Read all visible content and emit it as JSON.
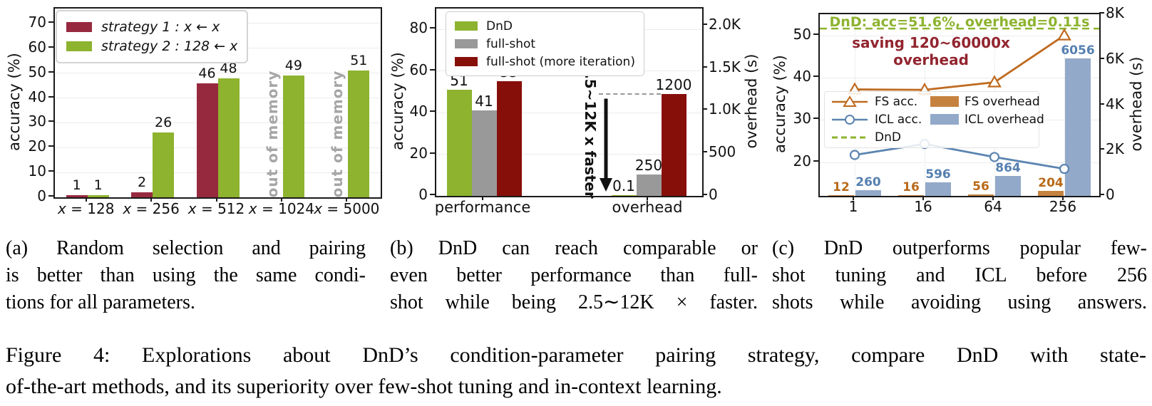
{
  "figure_caption": {
    "lines": [
      "Figure 4: Explorations about DnD’s condition-parameter pairing strategy, compare DnD with state-",
      "of-the-art methods, and its superiority over few-shot tuning and in-context learning."
    ],
    "justify_last": false
  },
  "subcaptions": {
    "a": {
      "lines": [
        "(a) Random selection and pairing",
        "is better than using the same condi-",
        "tions for all parameters."
      ],
      "justify_last": false
    },
    "b": {
      "lines": [
        "(b) DnD can reach comparable or",
        "even better performance than full-",
        "shot while being 2.5∼12K × faster."
      ],
      "justify_last": true
    },
    "c": {
      "lines": [
        "(c) DnD outperforms popular few-",
        "shot tuning and ICL before 256",
        "shots while avoiding using answers."
      ],
      "justify_last": true
    }
  },
  "chart_data": [
    {
      "panel": "a",
      "type": "bar",
      "title": "",
      "ylabel": "accuracy (%)",
      "ylim": [
        0,
        76
      ],
      "yticks": [
        0,
        10,
        20,
        30,
        40,
        50,
        60,
        70
      ],
      "categories": [
        "x = 128",
        "x = 256",
        "x = 512",
        "x = 1024",
        "x = 5000"
      ],
      "series": [
        {
          "name": "strategy 1 : x ← x",
          "color": "#97293f",
          "values": [
            1,
            2,
            46,
            null,
            null
          ]
        },
        {
          "name": "strategy 2 : 128 ← x",
          "color": "#8db32f",
          "values": [
            1,
            26,
            48,
            49,
            51
          ]
        }
      ],
      "oom_text": "out of memory",
      "grid": "horizontal",
      "legend_position": "upper left"
    },
    {
      "panel": "b",
      "type": "grouped-bar-dual-axis",
      "ylabel_left": "accuracy (%)",
      "ylabel_right": "overhead (s)",
      "ylim_left": [
        0,
        90
      ],
      "yticks_left": [
        0,
        20,
        40,
        60,
        80
      ],
      "ylim_right": [
        0,
        2200
      ],
      "yticks_right": [
        {
          "v": 0,
          "label": "0"
        },
        {
          "v": 500,
          "label": "500"
        },
        {
          "v": 1000,
          "label": "1.0K"
        },
        {
          "v": 1500,
          "label": "1.5K"
        },
        {
          "v": 2000,
          "label": "2.0K"
        }
      ],
      "categories": [
        "performance",
        "overhead"
      ],
      "series": [
        {
          "name": "DnD",
          "color": "#8db32f",
          "values": [
            51,
            0.1
          ]
        },
        {
          "name": "full-shot",
          "color": "#999999",
          "values": [
            41,
            250
          ]
        },
        {
          "name": "full-shot (more iteration)",
          "color": "#870f0a",
          "values": [
            55,
            1200
          ]
        }
      ],
      "annotation": "2.5~12K x faster",
      "dashed_line_right_value": 1200,
      "legend_position": "upper left"
    },
    {
      "panel": "c",
      "type": "line-bar-dual-axis",
      "x_ticks": [
        "1",
        "16",
        "64",
        "256"
      ],
      "ylabel_left": "accuracy (%)",
      "ylabel_right": "overhead (s)",
      "ylim_left": [
        12,
        55
      ],
      "yticks_left": [
        20,
        30,
        40,
        50
      ],
      "ylim_right": [
        0,
        8000
      ],
      "yticks_right": [
        {
          "v": 0,
          "label": "0"
        },
        {
          "v": 2000,
          "label": "2K"
        },
        {
          "v": 4000,
          "label": "4K"
        },
        {
          "v": 6000,
          "label": "6K"
        },
        {
          "v": 8000,
          "label": "8K"
        }
      ],
      "lines": [
        {
          "name": "FS acc.",
          "color": "#bf6a1f",
          "marker": "triangle",
          "values": [
            37.2,
            37.1,
            38.9,
            50.0
          ]
        },
        {
          "name": "ICL acc.",
          "color": "#5b84b1",
          "marker": "circle",
          "values": [
            21.7,
            24.3,
            21.2,
            18.4
          ]
        }
      ],
      "dnd_line": {
        "name": "DnD",
        "color": "#8db32f",
        "style": "dashed",
        "acc_value": 51.6
      },
      "bars": [
        {
          "name": "FS overhead",
          "color": "#c5823e",
          "label_color": "#b96a1a",
          "values": [
            12,
            16,
            56,
            204
          ]
        },
        {
          "name": "ICL overhead",
          "color": "#93a9c9",
          "label_color": "#5580b0",
          "values": [
            260,
            596,
            864,
            6056
          ]
        }
      ],
      "annotation_dnd": "DnD: acc=51.6%, overhead=0.11s",
      "annotation_dnd_color": "#8db32f",
      "annotation_saving": "saving 120~60000x overhead",
      "annotation_saving_color": "#92252f",
      "grid": "dotted"
    }
  ]
}
